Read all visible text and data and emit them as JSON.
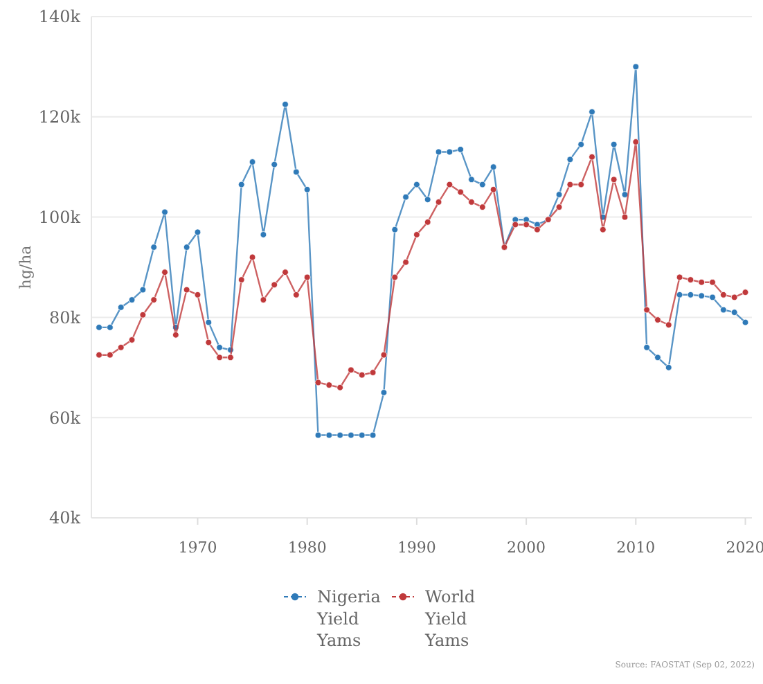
{
  "chart_data": {
    "type": "line",
    "ylabel": "hg/ha",
    "x": [
      1961,
      1962,
      1963,
      1964,
      1965,
      1966,
      1967,
      1968,
      1969,
      1970,
      1971,
      1972,
      1973,
      1974,
      1975,
      1976,
      1977,
      1978,
      1979,
      1980,
      1981,
      1982,
      1983,
      1984,
      1985,
      1986,
      1987,
      1988,
      1989,
      1990,
      1991,
      1992,
      1993,
      1994,
      1995,
      1996,
      1997,
      1998,
      1999,
      2000,
      2001,
      2002,
      2003,
      2004,
      2005,
      2006,
      2007,
      2008,
      2009,
      2010,
      2011,
      2012,
      2013,
      2014,
      2015,
      2016,
      2017,
      2018,
      2019,
      2020
    ],
    "series": [
      {
        "name": "Nigeria Yield Yams",
        "color": "#2f7ab8",
        "values": [
          78000,
          78000,
          82000,
          83500,
          85500,
          94000,
          101000,
          78000,
          94000,
          97000,
          79000,
          74000,
          73500,
          106500,
          111000,
          96500,
          110500,
          122500,
          109000,
          105500,
          56500,
          56500,
          56500,
          56500,
          56500,
          56500,
          65000,
          97500,
          104000,
          106500,
          103500,
          113000,
          113000,
          113500,
          107500,
          106500,
          110000,
          94000,
          99500,
          99500,
          98500,
          99500,
          104500,
          111500,
          114500,
          121000,
          100000,
          114500,
          104500,
          130000,
          74000,
          72000,
          70000,
          84500,
          84500,
          84300,
          84000,
          81500,
          81000,
          79000
        ]
      },
      {
        "name": "World Yield Yams",
        "color": "#c0393b",
        "values": [
          72500,
          72500,
          74000,
          75500,
          80500,
          83500,
          89000,
          76500,
          85500,
          84500,
          75000,
          72000,
          72000,
          87500,
          92000,
          83500,
          86500,
          89000,
          84500,
          88000,
          67000,
          66500,
          66000,
          69500,
          68500,
          69000,
          72500,
          88000,
          91000,
          96500,
          99000,
          103000,
          106500,
          105000,
          103000,
          102000,
          105500,
          94000,
          98500,
          98500,
          97500,
          99500,
          102000,
          106500,
          106500,
          112000,
          97500,
          107500,
          100000,
          115000,
          81500,
          79500,
          78500,
          88000,
          87500,
          87000,
          87000,
          84500,
          84000,
          85000
        ]
      }
    ],
    "xlim": [
      1960.3,
      2020.6
    ],
    "xticks": [
      1970,
      1980,
      1990,
      2000,
      2010,
      2020
    ],
    "ylim": [
      40000,
      140000
    ],
    "yticks": [
      {
        "value": 40000,
        "label": "40k"
      },
      {
        "value": 60000,
        "label": "60k"
      },
      {
        "value": 80000,
        "label": "80k"
      },
      {
        "value": 100000,
        "label": "100k"
      },
      {
        "value": 120000,
        "label": "120k"
      },
      {
        "value": 140000,
        "label": "140k"
      }
    ],
    "grid": "y",
    "legend": "bottom",
    "marker": "circle",
    "line_style": "solid",
    "annotations": [
      "Source: FAOSTAT (Sep 02, 2022)"
    ]
  }
}
